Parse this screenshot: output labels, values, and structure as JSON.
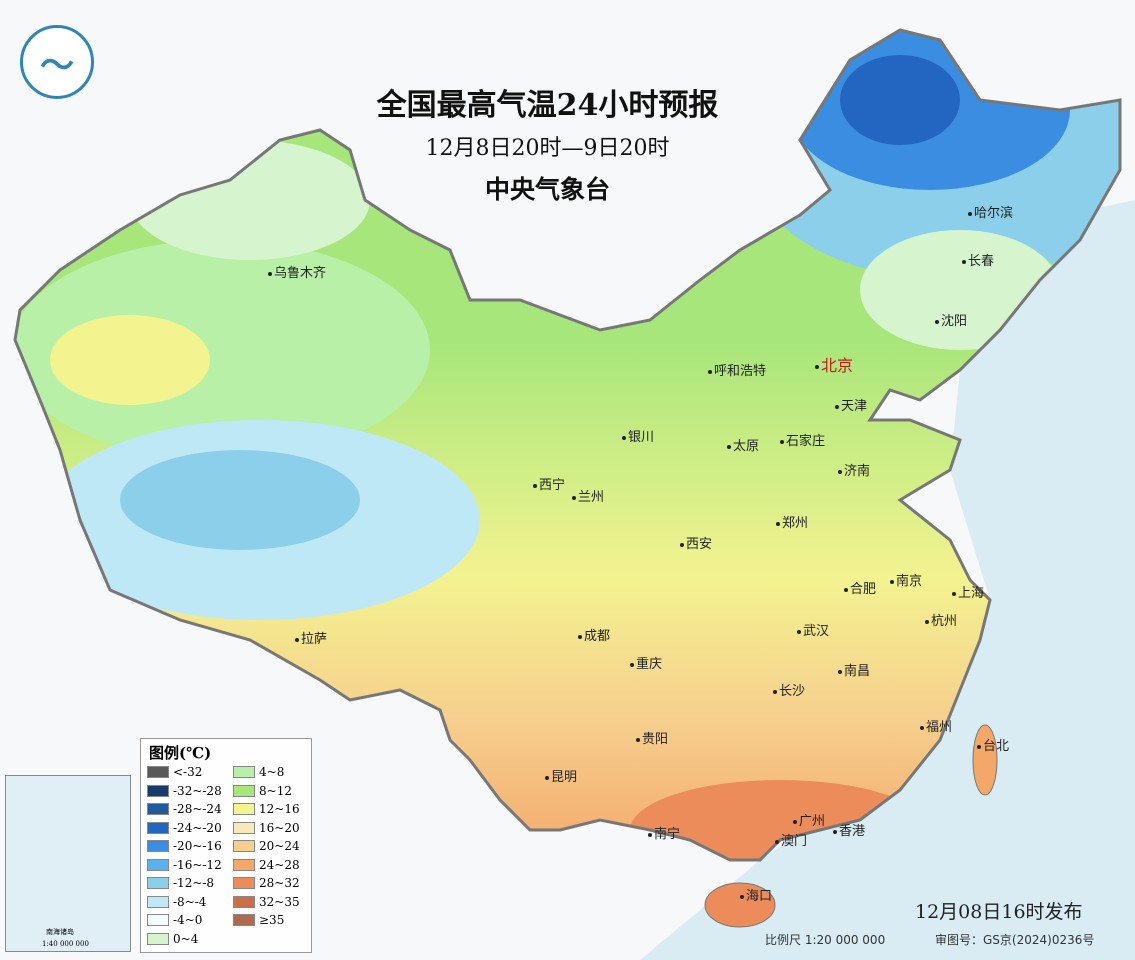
{
  "header": {
    "title": "全国最高气温24小时预报",
    "period": "12月8日20时—9日20时",
    "agency": "中央气象台"
  },
  "logo": {
    "icon": "cma-logo"
  },
  "cities": [
    {
      "name": "乌鲁木齐"
    },
    {
      "name": "哈尔滨"
    },
    {
      "name": "长春"
    },
    {
      "name": "沈阳"
    },
    {
      "name": "呼和浩特"
    },
    {
      "name": "北京",
      "capital": true
    },
    {
      "name": "天津"
    },
    {
      "name": "银川"
    },
    {
      "name": "太原"
    },
    {
      "name": "石家庄"
    },
    {
      "name": "济南"
    },
    {
      "name": "西宁"
    },
    {
      "name": "兰州"
    },
    {
      "name": "郑州"
    },
    {
      "name": "西安"
    },
    {
      "name": "合肥"
    },
    {
      "name": "南京"
    },
    {
      "name": "上海"
    },
    {
      "name": "成都"
    },
    {
      "name": "武汉"
    },
    {
      "name": "杭州"
    },
    {
      "name": "拉萨"
    },
    {
      "name": "重庆"
    },
    {
      "name": "南昌"
    },
    {
      "name": "长沙"
    },
    {
      "name": "贵阳"
    },
    {
      "name": "福州"
    },
    {
      "name": "台北"
    },
    {
      "name": "昆明"
    },
    {
      "name": "广州"
    },
    {
      "name": "南宁"
    },
    {
      "name": "香港"
    },
    {
      "name": "澳门"
    },
    {
      "name": "海口"
    }
  ],
  "legend": {
    "title": "图例(℃)",
    "items": [
      {
        "label": "<-32",
        "color": "#5a5a5a"
      },
      {
        "label": "-32~-28",
        "color": "#173a6e"
      },
      {
        "label": "-28~-24",
        "color": "#1f5a9a"
      },
      {
        "label": "-24~-20",
        "color": "#2366c2"
      },
      {
        "label": "-20~-16",
        "color": "#3a8de0"
      },
      {
        "label": "-16~-12",
        "color": "#5bb0ee"
      },
      {
        "label": "-12~-8",
        "color": "#8ccfea"
      },
      {
        "label": "-8~-4",
        "color": "#bfe8f6"
      },
      {
        "label": "-4~0",
        "color": "#f2fafc"
      },
      {
        "label": "0~4",
        "color": "#d6f5cf"
      },
      {
        "label": "4~8",
        "color": "#b8f0a8"
      },
      {
        "label": "8~12",
        "color": "#a6e67a"
      },
      {
        "label": "12~16",
        "color": "#f3f390"
      },
      {
        "label": "16~20",
        "color": "#f8eab8"
      },
      {
        "label": "20~24",
        "color": "#f6cf8e"
      },
      {
        "label": "24~28",
        "color": "#f3a86a"
      },
      {
        "label": "28~32",
        "color": "#ec8c5a"
      },
      {
        "label": "32~35",
        "color": "#c9704a"
      },
      {
        "label": "≥35",
        "color": "#b06a4f"
      }
    ]
  },
  "footer": {
    "published": "12月08日16时发布",
    "scale": "比例尺 1:20 000 000",
    "approval": "审图号：GS京(2024)0236号"
  },
  "inset": {
    "label": "南海诸岛",
    "scale": "1:40 000 000"
  }
}
